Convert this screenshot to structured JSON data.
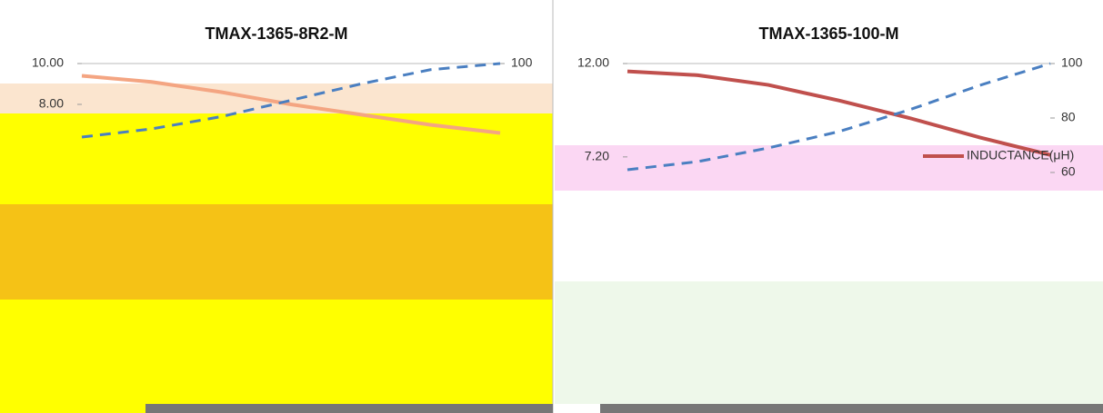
{
  "chart_data": [
    {
      "type": "line",
      "title": "TMAX-1365-8R2-M",
      "categories": [
        null,
        null,
        null,
        null,
        null,
        null,
        null
      ],
      "ylim": [
        6,
        10
      ],
      "yticks": [
        {
          "value": 10,
          "label": "10.00"
        },
        {
          "value": 8,
          "label": "8.00"
        }
      ],
      "y2lim": [
        60,
        100
      ],
      "y2ticks": [
        100
      ],
      "series": [
        {
          "color": "#f4a582",
          "values": [
            9.4,
            9.1,
            8.6,
            8.0,
            7.5,
            7.0,
            6.6
          ]
        },
        {
          "color": "#4a7fc1",
          "axis": "y2",
          "values": [
            64,
            68,
            74,
            82,
            90,
            97,
            100
          ]
        }
      ]
    },
    {
      "type": "line",
      "title": "TMAX-1365-100-M",
      "categories": [
        null,
        null,
        null,
        null,
        null,
        null,
        null
      ],
      "ylim": [
        6.4,
        12
      ],
      "yticks": [
        {
          "value": 12,
          "label": "12.00"
        },
        {
          "value": 7.2,
          "label": "7.20"
        }
      ],
      "y2lim": [
        60,
        100
      ],
      "y2ticks": [
        100,
        80,
        60
      ],
      "series": [
        {
          "name": "INDUCTANCE(μH)",
          "color": "#c0504d",
          "values": [
            11.6,
            11.4,
            10.9,
            10.1,
            9.2,
            8.2,
            7.3
          ]
        },
        {
          "color": "#4a7fc1",
          "axis": "y2",
          "values": [
            61,
            64,
            69,
            75,
            83,
            92,
            100
          ]
        }
      ]
    }
  ]
}
